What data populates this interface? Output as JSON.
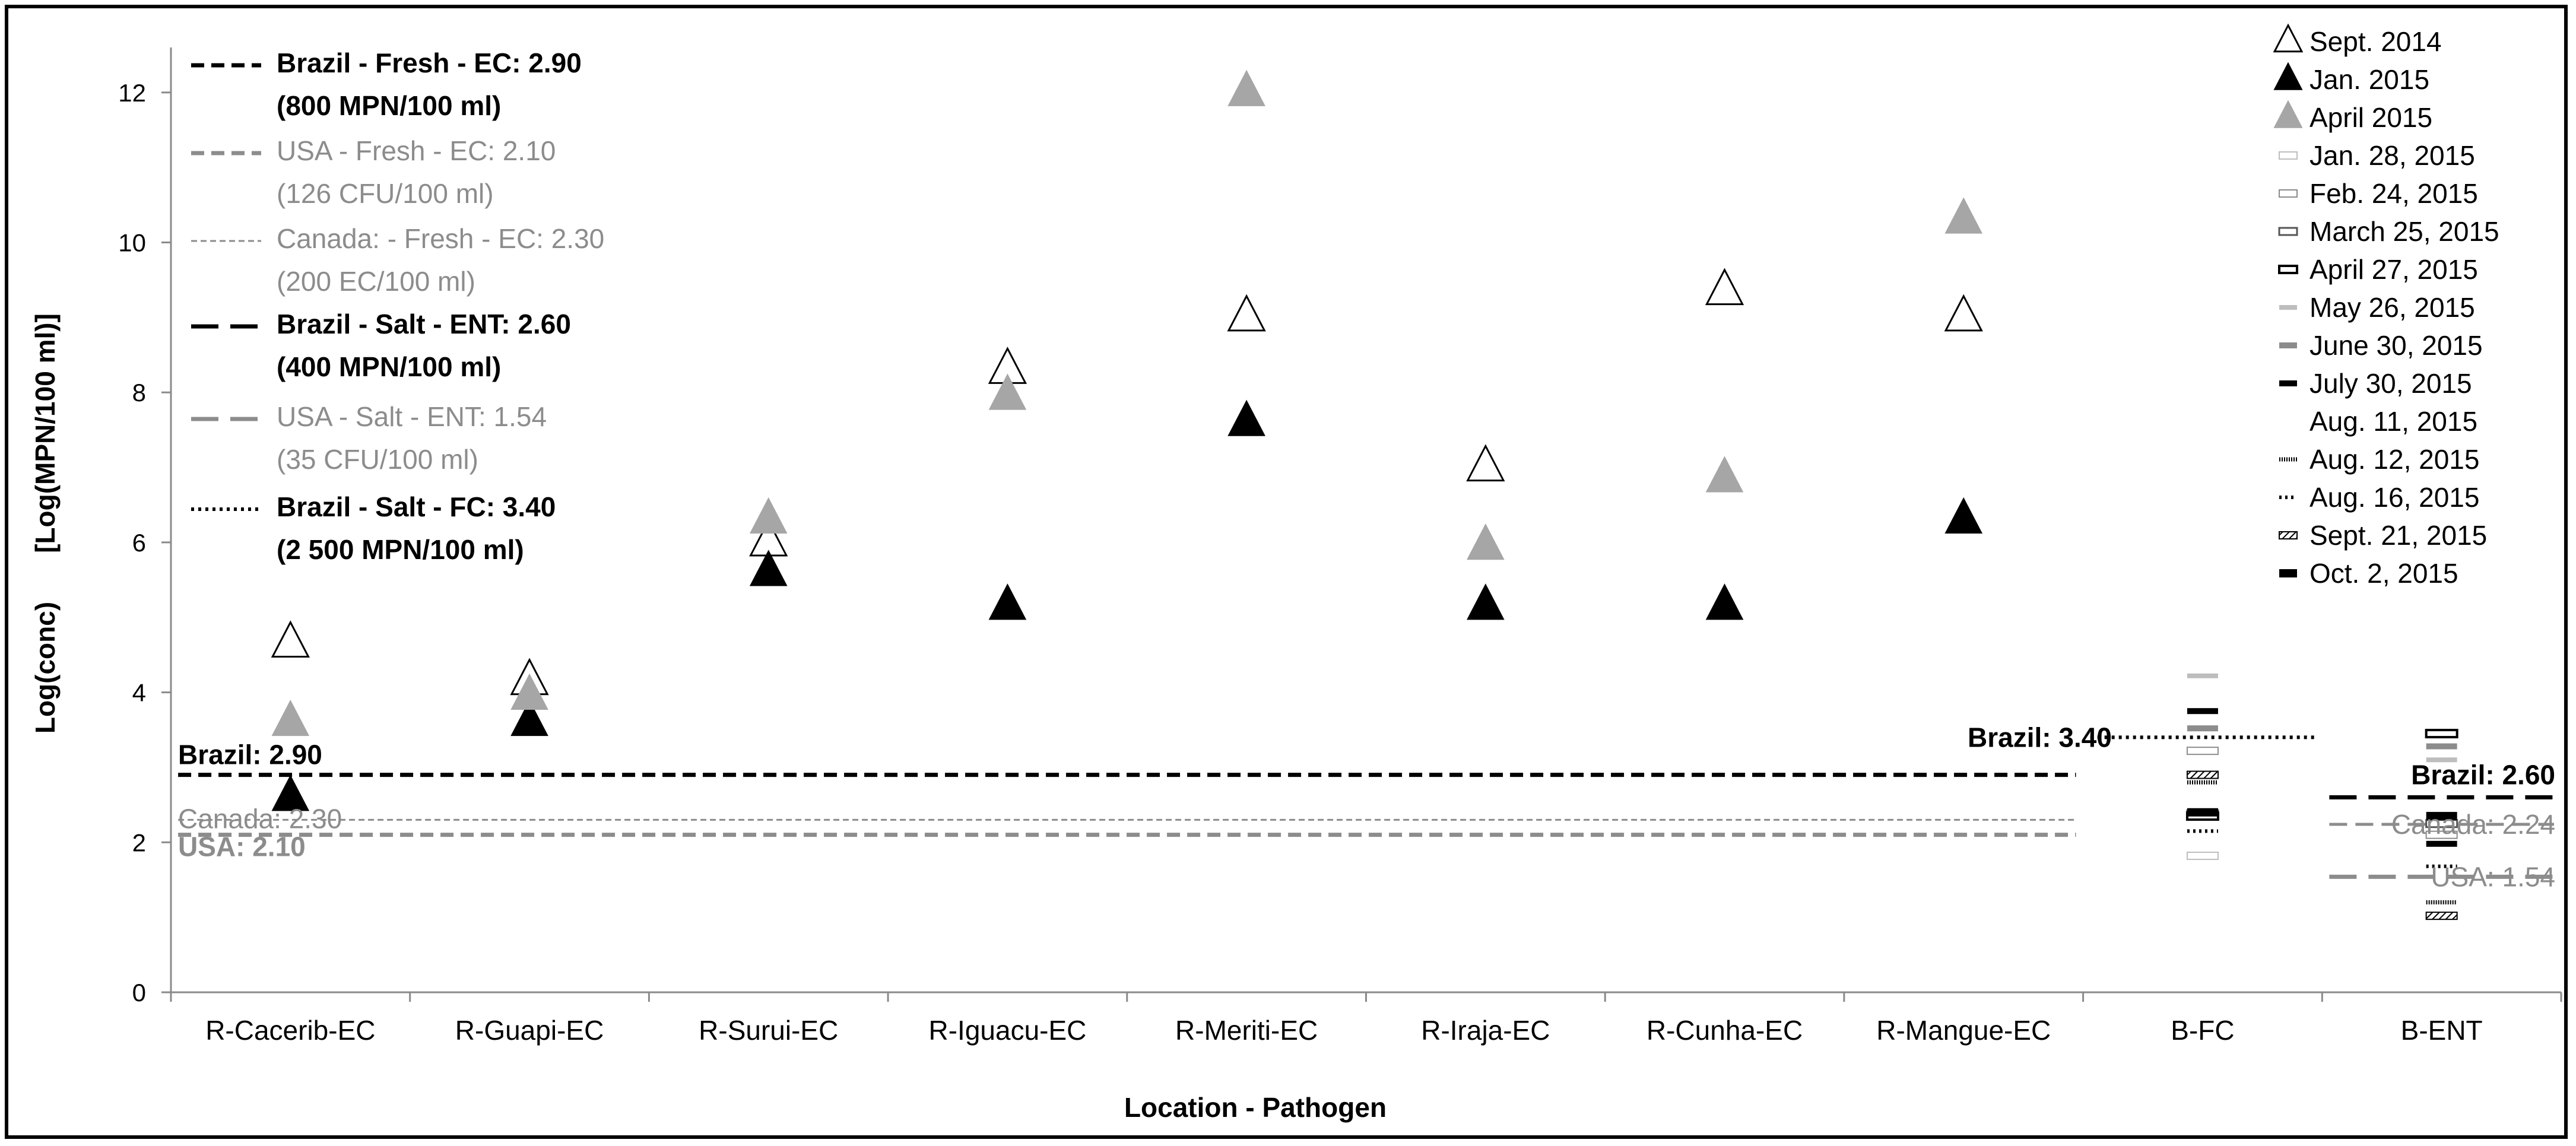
{
  "chart_data": {
    "type": "scatter",
    "title": "",
    "xlabel": "Location - Pathogen",
    "ylabel_parts": [
      "Log(conc)",
      "[Log(MPN/100 ml)]"
    ],
    "ylim": [
      0,
      12.6
    ],
    "yticks": [
      "0",
      "2",
      "4",
      "6",
      "8",
      "10",
      "12"
    ],
    "categories": [
      "R-Cacerib-EC",
      "R-Guapi-EC",
      "R-Surui-EC",
      "R-Iguacu-EC",
      "R-Meriti-EC",
      "R-Iraja-EC",
      "R-Cunha-EC",
      "R-Mangue-EC",
      "B-FC",
      "B-ENT"
    ],
    "triangle_series": [
      {
        "name": "Sept. 2014",
        "style": "open",
        "values": [
          4.65,
          4.15,
          6.0,
          8.3,
          9.0,
          7.0,
          9.35,
          9.0
        ]
      },
      {
        "name": "Jan. 2015",
        "style": "black",
        "values": [
          2.6,
          3.6,
          5.6,
          5.15,
          7.6,
          5.15,
          5.15,
          6.3
        ]
      },
      {
        "name": "April 2015",
        "style": "gray",
        "values": [
          3.6,
          3.95,
          6.3,
          7.95,
          12.0,
          5.95,
          6.85,
          10.3
        ]
      }
    ],
    "bar_series": [
      {
        "name": "Jan. 28, 2015",
        "style": "hollow-light",
        "fc": 1.82,
        "ent": null
      },
      {
        "name": "Feb. 24, 2015",
        "style": "hollow-thin",
        "fc": 3.22,
        "ent": 2.1
      },
      {
        "name": "March 25, 2015",
        "style": "hollow-mid",
        "fc": 2.38,
        "ent": 2.25
      },
      {
        "name": "April 27, 2015",
        "style": "hollow-bold",
        "fc": 2.35,
        "ent": 3.45
      },
      {
        "name": "May 26, 2015",
        "style": "solid-light",
        "fc": 4.22,
        "ent": 3.1
      },
      {
        "name": "June 30, 2015",
        "style": "solid-gray",
        "fc": 3.52,
        "ent": 3.28
      },
      {
        "name": "July 30, 2015",
        "style": "solid-black",
        "fc": 3.75,
        "ent": 1.98
      },
      {
        "name": "Aug. 11, 2015",
        "style": "none",
        "fc": null,
        "ent": null
      },
      {
        "name": "Aug. 12, 2015",
        "style": "dashed-fine",
        "fc": 2.8,
        "ent": 1.2
      },
      {
        "name": "Aug. 16, 2015",
        "style": "dotted",
        "fc": 2.15,
        "ent": 1.68
      },
      {
        "name": "Sept. 21, 2015",
        "style": "hatched",
        "fc": 2.9,
        "ent": 1.02
      },
      {
        "name": "Oct. 2, 2015",
        "style": "solid-black-thick",
        "fc": 2.4,
        "ent": 2.35
      }
    ],
    "threshold_legend": [
      {
        "line1": "Brazil - Fresh - EC: 2.90",
        "line2": "(800 MPN/100 ml)",
        "color": "#000000",
        "bold": true,
        "dash": "22,12",
        "width": 7
      },
      {
        "line1": "USA - Fresh - EC: 2.10",
        "line2": "(126 CFU/100 ml)",
        "color": "#8c8c8c",
        "bold": false,
        "dash": "22,12",
        "width": 7
      },
      {
        "line1": "Canada: - Fresh - EC: 2.30",
        "line2": "(200 EC/100 ml)",
        "color": "#8c8c8c",
        "bold": false,
        "dash": "10,6",
        "width": 3
      },
      {
        "line1": "Brazil - Salt - ENT: 2.60",
        "line2": "(400 MPN/100 ml)",
        "color": "#000000",
        "bold": true,
        "dash": "46,20",
        "width": 7
      },
      {
        "line1": "USA - Salt - ENT: 1.54",
        "line2": "(35 CFU/100 ml)",
        "color": "#8c8c8c",
        "bold": false,
        "dash": "46,20",
        "width": 7
      },
      {
        "line1": "Brazil - Salt - FC: 3.40",
        "line2": "(2 500 MPN/100 ml)",
        "color": "#000000",
        "bold": true,
        "dash": "5,7",
        "width": 6
      }
    ],
    "threshold_lines": [
      {
        "value": 2.9,
        "from": 0,
        "to": 7,
        "color": "#000000",
        "dash": "22,12",
        "width": 7
      },
      {
        "value": 2.3,
        "from": 0,
        "to": 7,
        "color": "#8c8c8c",
        "dash": "10,6",
        "width": 3
      },
      {
        "value": 2.1,
        "from": 0,
        "to": 7,
        "color": "#8c8c8c",
        "dash": "22,12",
        "width": 7
      },
      {
        "value": 3.4,
        "from": 8,
        "to": 8,
        "color": "#000000",
        "dash": "5,7",
        "width": 6
      },
      {
        "value": 2.6,
        "from": 9,
        "to": 9,
        "color": "#000000",
        "dash": "46,20",
        "width": 7
      },
      {
        "value": 2.24,
        "from": 9,
        "to": 9,
        "color": "#8c8c8c",
        "dash": "30,14",
        "width": 5
      },
      {
        "value": 1.54,
        "from": 9,
        "to": 9,
        "color": "#8c8c8c",
        "dash": "46,20",
        "width": 7
      }
    ],
    "threshold_labels": [
      {
        "text": "Brazil:  2.90",
        "value": 2.9,
        "side": "left",
        "color": "#000000",
        "bold": true
      },
      {
        "text": "Canada: 2.30",
        "value": 2.3,
        "side": "left",
        "color": "#8c8c8c",
        "bold": false
      },
      {
        "text": "USA: 2.10",
        "value": 2.1,
        "side": "left",
        "color": "#8c8c8c",
        "bold": true
      },
      {
        "text": "Brazil:  3.40",
        "value": 3.4,
        "side": "fc",
        "color": "#000000",
        "bold": true
      },
      {
        "text": "Brazil:  2.60",
        "value": 2.6,
        "side": "ent",
        "color": "#000000",
        "bold": true
      },
      {
        "text": "Canada: 2.24",
        "value": 2.24,
        "side": "ent",
        "color": "#8c8c8c",
        "bold": false
      },
      {
        "text": "USA: 1.54",
        "value": 1.54,
        "side": "ent",
        "color": "#8c8c8c",
        "bold": false
      }
    ],
    "grid": false,
    "legend_position": "right"
  }
}
